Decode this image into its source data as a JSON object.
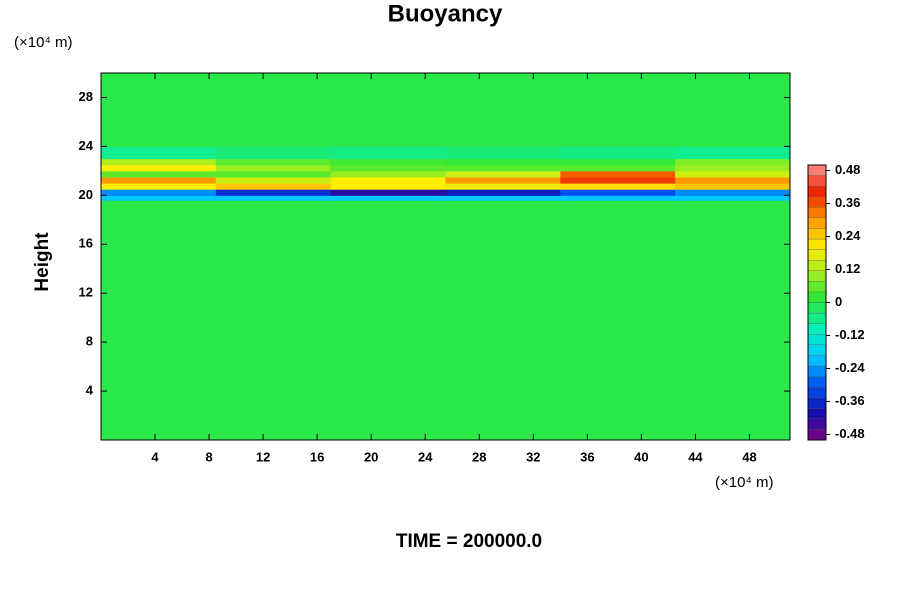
{
  "chart_data": {
    "type": "heatmap",
    "title": "Buoyancy",
    "ylabel": "Height",
    "y_unit": "(×10⁴ m)",
    "x_unit": "(×10⁴ m)",
    "annotation": "TIME = 200000.0",
    "xlim": [
      0,
      51
    ],
    "ylim": [
      0,
      30
    ],
    "xticks": [
      4,
      8,
      12,
      16,
      20,
      24,
      28,
      32,
      36,
      40,
      44,
      48
    ],
    "yticks": [
      4,
      8,
      12,
      16,
      20,
      24,
      28
    ],
    "x": [
      0,
      8.5,
      17,
      25.5,
      34,
      42.5,
      51
    ],
    "y": [
      0,
      19.6,
      20.0,
      20.5,
      21.0,
      21.5,
      22.0,
      22.5,
      23.0,
      24.0,
      30
    ],
    "z": [
      [
        0,
        0,
        0,
        0,
        0,
        0
      ],
      [
        -0.2,
        -0.2,
        -0.2,
        -0.2,
        -0.2,
        -0.2
      ],
      [
        -0.25,
        -0.35,
        -0.42,
        -0.38,
        -0.3,
        -0.25
      ],
      [
        0.2,
        0.25,
        0.2,
        0.18,
        0.22,
        0.25
      ],
      [
        0.3,
        0.15,
        0.2,
        0.3,
        0.38,
        0.3
      ],
      [
        0.05,
        0.05,
        0.1,
        0.15,
        0.35,
        0.15
      ],
      [
        0.2,
        0.1,
        0.05,
        0.05,
        0.05,
        0.1
      ],
      [
        0.12,
        0.05,
        0.03,
        0.02,
        0.02,
        0.08
      ],
      [
        -0.06,
        -0.04,
        -0.05,
        -0.04,
        -0.05,
        -0.06
      ],
      [
        0,
        0,
        0,
        0,
        0,
        0
      ]
    ],
    "clim": [
      -0.5,
      0.5
    ],
    "cticks": [
      0.48,
      0.36,
      0.24,
      0.12,
      0,
      -0.12,
      -0.24,
      -0.36,
      -0.48
    ],
    "colorscale": [
      [
        -0.5,
        "#800080"
      ],
      [
        -0.4,
        "#1010b0"
      ],
      [
        -0.3,
        "#0050f0"
      ],
      [
        -0.2,
        "#00c8ff"
      ],
      [
        -0.1,
        "#00f0c0"
      ],
      [
        -0.02,
        "#20e860"
      ],
      [
        0.02,
        "#33e833"
      ],
      [
        0.1,
        "#99ee22"
      ],
      [
        0.2,
        "#ffee00"
      ],
      [
        0.3,
        "#ff9900"
      ],
      [
        0.4,
        "#ee2200"
      ],
      [
        0.5,
        "#ff9090"
      ]
    ]
  }
}
